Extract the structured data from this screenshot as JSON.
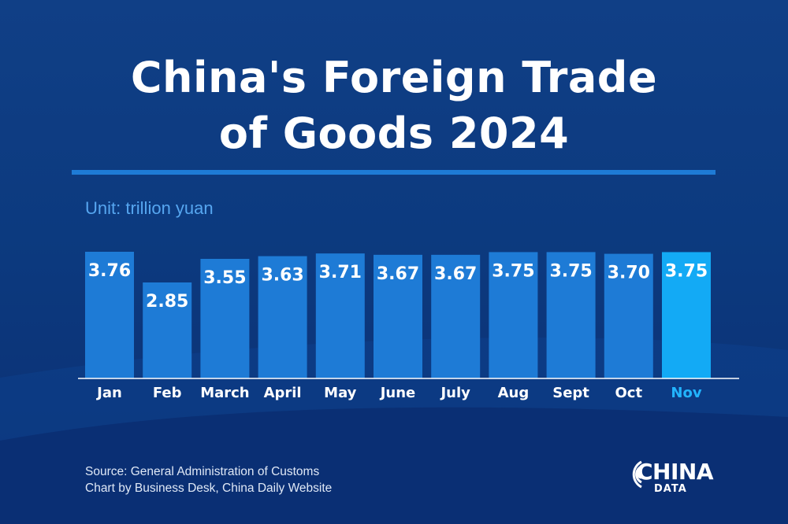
{
  "header": {
    "title_line_1": "China's Foreign Trade",
    "title_line_2": "of Goods 2024"
  },
  "unit_label": "Unit: trillion yuan",
  "colors": {
    "background": "#0c3a7f",
    "bar": "#1e7bd6",
    "bar_highlight": "#13aaf5",
    "highlight_text": "#22b4ff",
    "divider": "#1e7bd6"
  },
  "chart_data": {
    "type": "bar",
    "categories": [
      "Jan",
      "Feb",
      "March",
      "April",
      "May",
      "June",
      "July",
      "Aug",
      "Sept",
      "Oct",
      "Nov"
    ],
    "values": [
      3.76,
      2.85,
      3.55,
      3.63,
      3.71,
      3.67,
      3.67,
      3.75,
      3.75,
      3.7,
      3.75
    ],
    "value_labels": [
      "3.76",
      "2.85",
      "3.55",
      "3.63",
      "3.71",
      "3.67",
      "3.67",
      "3.75",
      "3.75",
      "3.70",
      "3.75"
    ],
    "highlight_category": "Nov",
    "title": "China's Foreign Trade of Goods 2024",
    "xlabel": "",
    "ylabel": "Unit: trillion yuan",
    "grid": false
  },
  "footer": {
    "source_line": "Source: General Administration of Customs",
    "credit_line": "Chart by Business Desk, China Daily Website"
  },
  "logo": {
    "main": "CHINA",
    "sub": "DATA",
    "icon": "signal-arcs-icon"
  }
}
